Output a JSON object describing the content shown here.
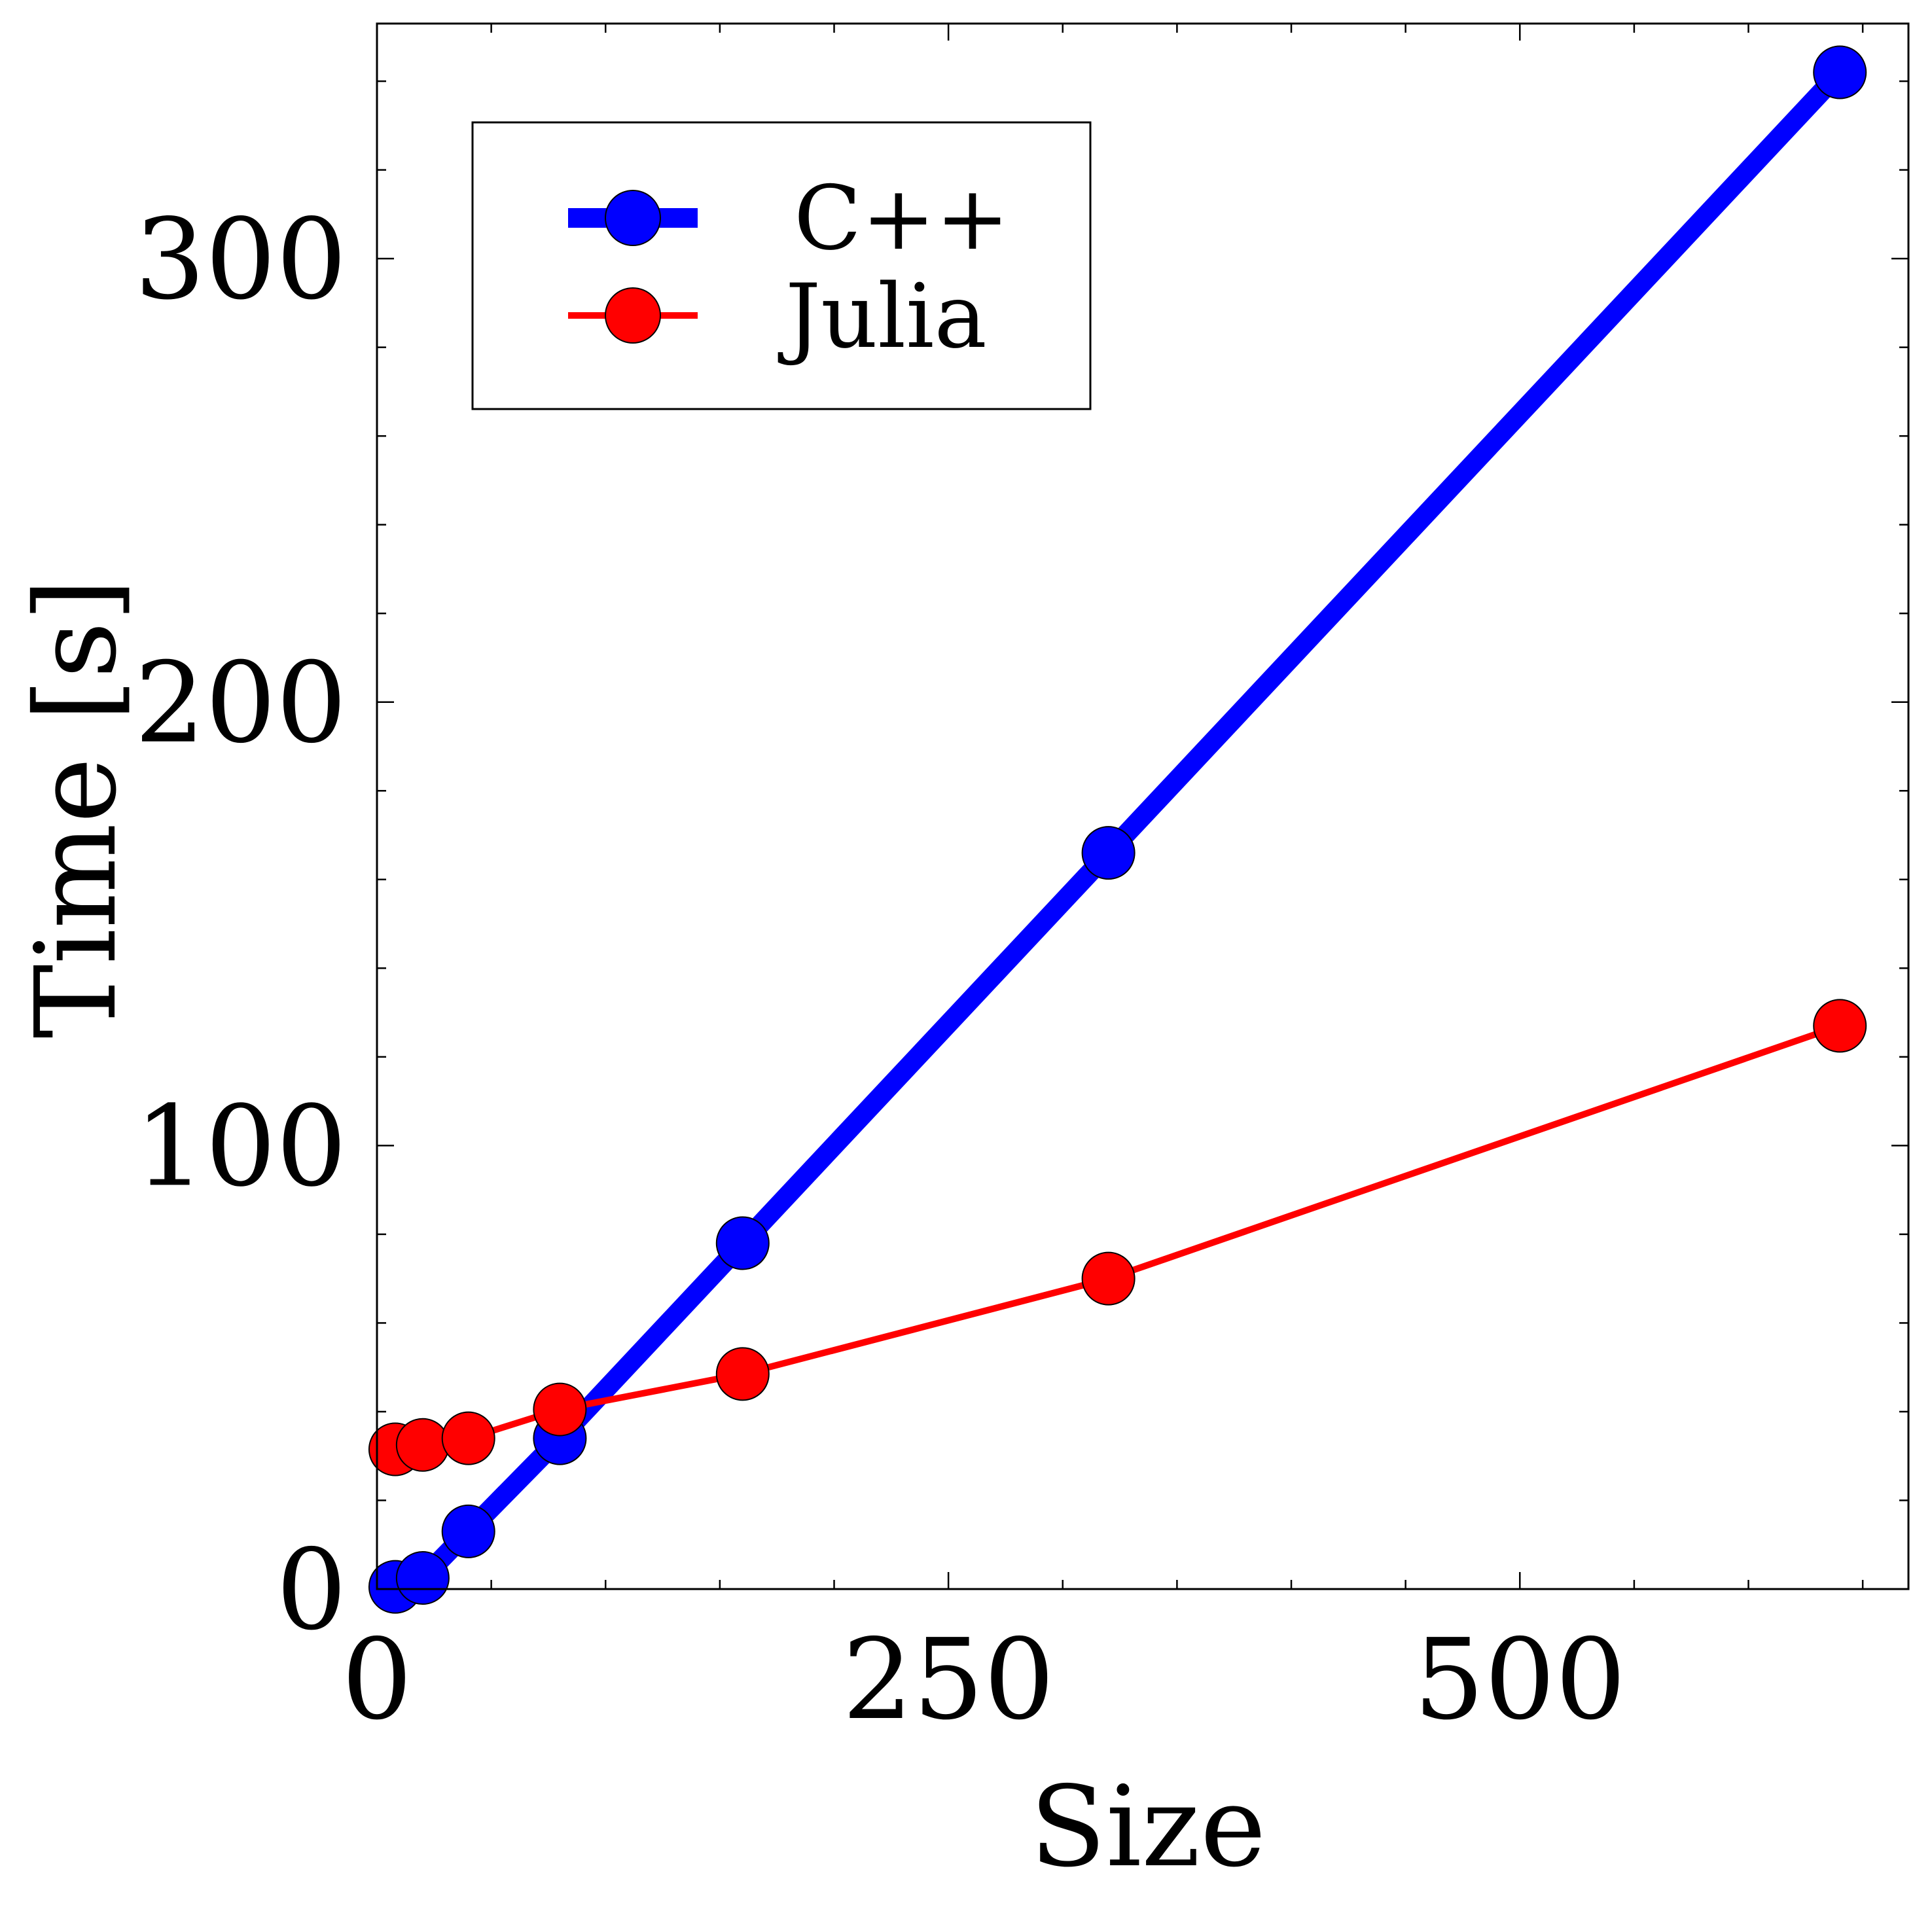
{
  "chart_data": {
    "type": "line",
    "title": "",
    "xlabel": "Size",
    "ylabel": "Time [s]",
    "xlim": [
      0,
      670
    ],
    "ylim": [
      0,
      353
    ],
    "xticks": [
      0,
      250,
      500
    ],
    "yticks": [
      0,
      100,
      200,
      300
    ],
    "xtick_labels": [
      "0",
      "250",
      "500"
    ],
    "ytick_labels": [
      "0",
      "100",
      "200",
      "300"
    ],
    "x_minor_step": 50,
    "y_minor_step": 20,
    "grid": false,
    "legend_position": "top-left",
    "series": [
      {
        "name": "C++",
        "color": "#0000ff",
        "line_width": "thick",
        "marker": "circle",
        "x": [
          8,
          20,
          40,
          80,
          160,
          320,
          640
        ],
        "y": [
          0.5,
          2.5,
          13,
          34,
          78,
          166,
          342
        ]
      },
      {
        "name": "Julia",
        "color": "#ff0000",
        "line_width": "thin",
        "marker": "circle",
        "x": [
          8,
          20,
          40,
          80,
          160,
          320,
          640
        ],
        "y": [
          31.5,
          32.5,
          34,
          40.5,
          48.5,
          70,
          127
        ]
      }
    ]
  }
}
